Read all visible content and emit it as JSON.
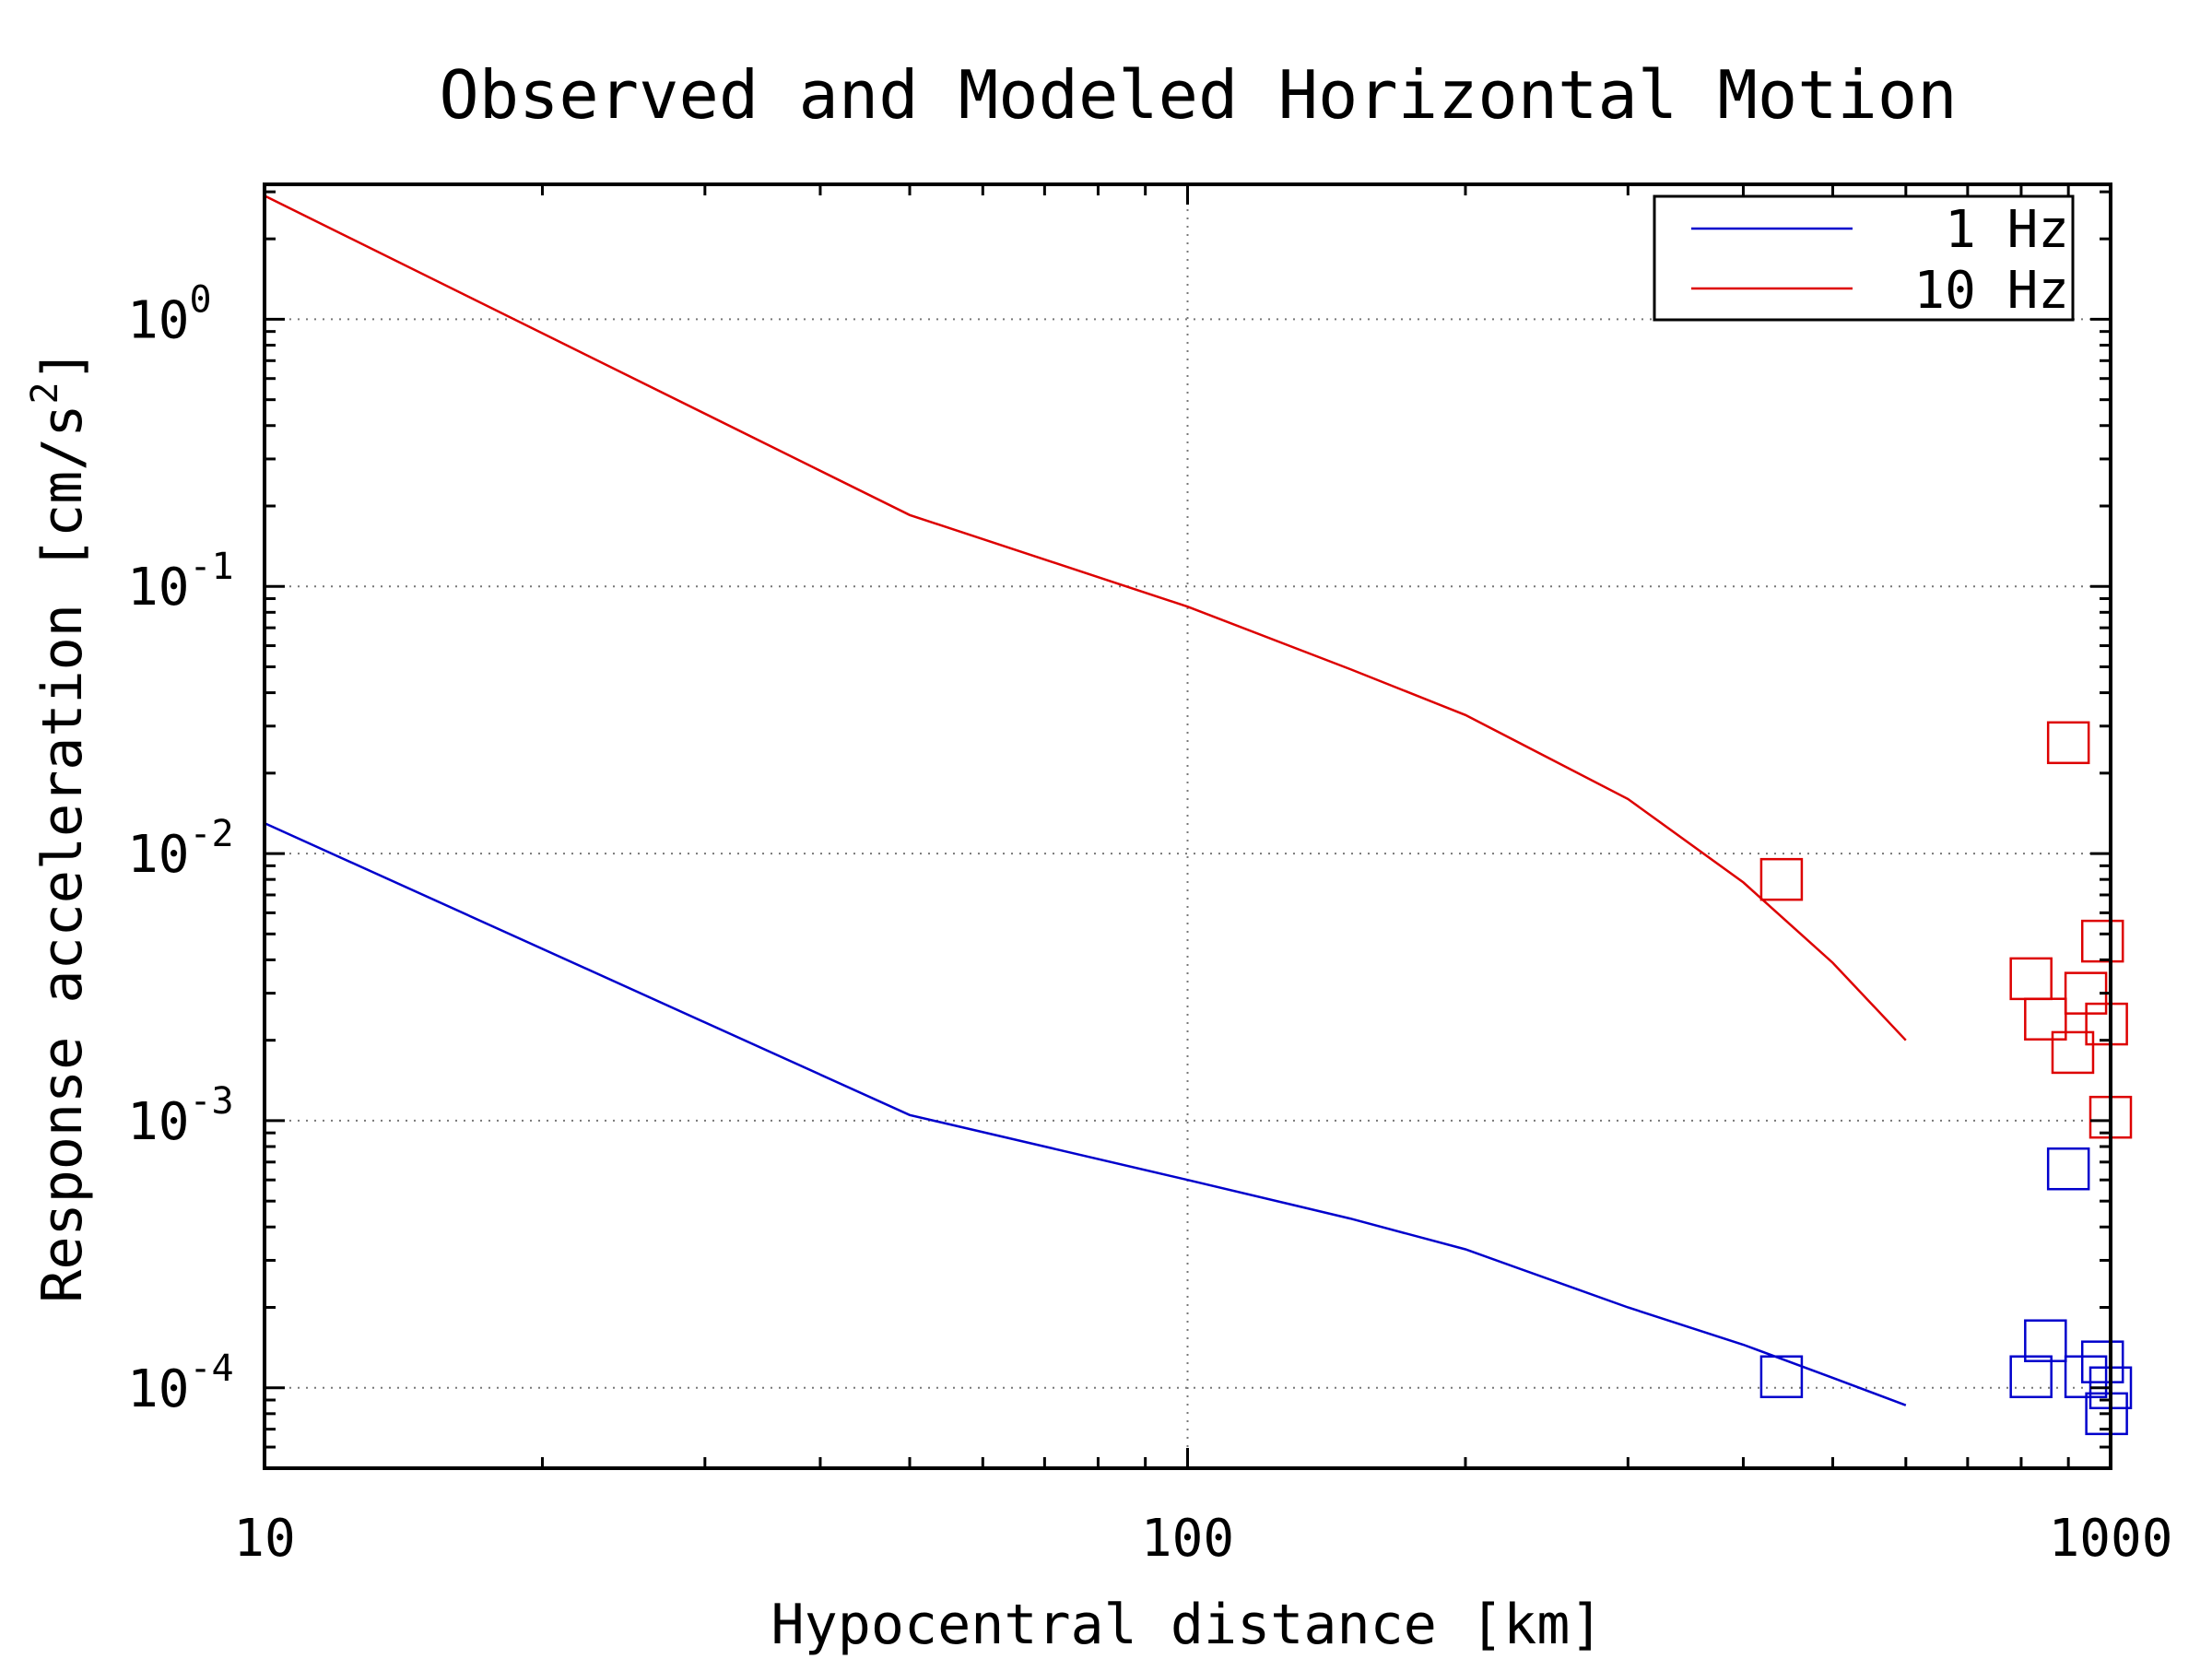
{
  "chart_data": {
    "type": "line",
    "title": "Observed and Modeled Horizontal Motion",
    "xlabel": "Hypocentral distance [km]",
    "ylabel": "Response acceleration [cm/s²]",
    "ylabel_base": "Response acceleration [cm/s",
    "ylabel_sup": "2",
    "ylabel_close": "]",
    "xscale": "log",
    "yscale": "log",
    "xlim": [
      10,
      1000
    ],
    "ylim": [
      5e-05,
      3.2
    ],
    "grid": true,
    "legend_position": "top-right",
    "x_ticks": [
      {
        "value": 10,
        "label": "10"
      },
      {
        "value": 100,
        "label": "100"
      },
      {
        "value": 1000,
        "label": "1000"
      }
    ],
    "y_ticks": [
      {
        "value": 1,
        "base": "10",
        "exp": "0"
      },
      {
        "value": 0.1,
        "base": "10",
        "exp": "-1"
      },
      {
        "value": 0.01,
        "base": "10",
        "exp": "-2"
      },
      {
        "value": 0.001,
        "base": "10",
        "exp": "-3"
      },
      {
        "value": 0.0001,
        "base": "10",
        "exp": "-4"
      }
    ],
    "series": [
      {
        "name": "1 Hz",
        "color": "#0000cc",
        "model": {
          "x": [
            10,
            50,
            100,
            150,
            200,
            300,
            400,
            500,
            600
          ],
          "y": [
            0.013,
            0.00105,
            0.0006,
            0.00043,
            0.00033,
            0.0002,
            0.000145,
            0.000109,
            8.6e-05
          ]
        },
        "observed": {
          "x": [
            440,
            820,
            850,
            900,
            940,
            980,
            990,
            1000
          ],
          "y": [
            0.00011,
            0.00011,
            0.00015,
            0.00066,
            0.00011,
            0.000125,
            8e-05,
            0.0001
          ]
        }
      },
      {
        "name": "10 Hz",
        "color": "#dd0000",
        "model": {
          "x": [
            10,
            50,
            100,
            150,
            200,
            300,
            400,
            500,
            600
          ],
          "y": [
            2.9,
            0.185,
            0.084,
            0.049,
            0.033,
            0.016,
            0.0078,
            0.0039,
            0.002
          ]
        },
        "observed": {
          "x": [
            440,
            820,
            850,
            900,
            910,
            940,
            980,
            990,
            1000
          ],
          "y": [
            0.008,
            0.0034,
            0.0024,
            0.026,
            0.0018,
            0.003,
            0.0047,
            0.0023,
            0.00103
          ]
        }
      }
    ]
  }
}
